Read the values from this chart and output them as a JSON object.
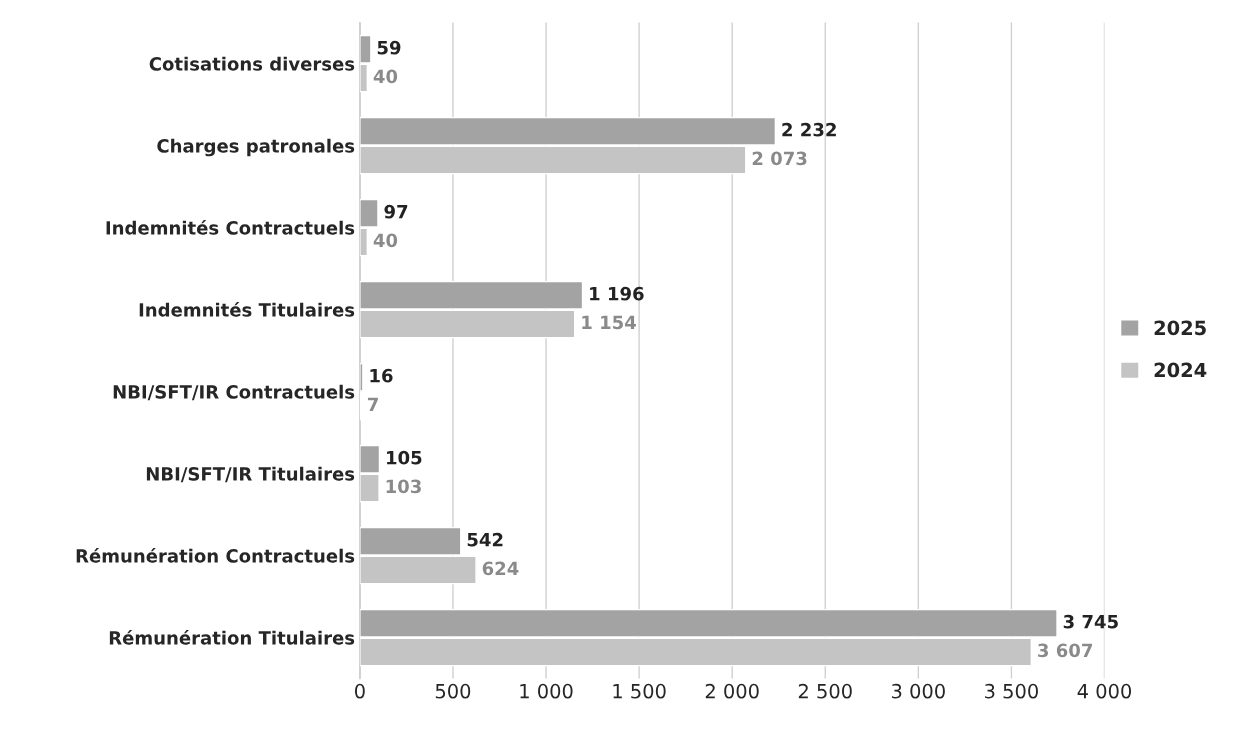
{
  "chart_data": {
    "type": "bar",
    "orientation": "horizontal",
    "categories": [
      "Cotisations diverses",
      "Charges patronales",
      "Indemnités Contractuels",
      "Indemnités Titulaires",
      "NBI/SFT/IR Contractuels",
      "NBI/SFT/IR Titulaires",
      "Rémunération Contractuels",
      "Rémunération Titulaires"
    ],
    "series": [
      {
        "name": "2025",
        "color": "#a3a3a3",
        "values": [
          59,
          2232,
          97,
          1196,
          16,
          105,
          542,
          3745
        ],
        "value_labels": [
          "59",
          "2 232",
          "97",
          "1 196",
          "16",
          "105",
          "542",
          "3 745"
        ]
      },
      {
        "name": "2024",
        "color": "#c4c4c4",
        "values": [
          40,
          2073,
          40,
          1154,
          7,
          103,
          624,
          3607
        ],
        "value_labels": [
          "40",
          "2 073",
          "40",
          "1 154",
          "7",
          "103",
          "624",
          "3 607"
        ]
      }
    ],
    "xlim": [
      0,
      4000
    ],
    "xticks": [
      0,
      500,
      {
        "value": 1000,
        "label": "1 000"
      },
      {
        "value": 1500,
        "label": "1 500"
      },
      {
        "value": 2000,
        "label": "2 000"
      },
      {
        "value": 2500,
        "label": "2 500"
      },
      {
        "value": 3000,
        "label": "3 000"
      },
      {
        "value": 3500,
        "label": "3 500"
      },
      {
        "value": 4000,
        "label": "4 000"
      }
    ],
    "grid": "x",
    "legend": "right"
  }
}
